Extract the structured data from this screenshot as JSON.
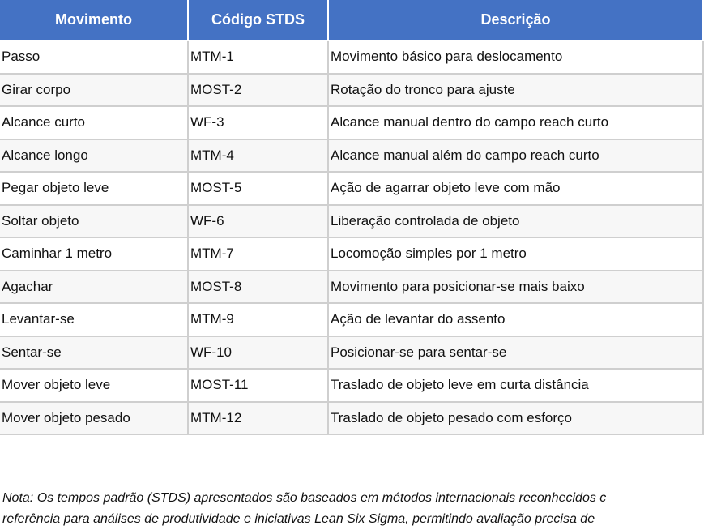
{
  "table": {
    "headers": [
      "Movimento",
      "Código STDS",
      "Descrição"
    ],
    "rows": [
      [
        "Passo",
        "MTM-1",
        "Movimento básico para deslocamento"
      ],
      [
        "Girar corpo",
        "MOST-2",
        "Rotação do tronco para ajuste"
      ],
      [
        "Alcance curto",
        "WF-3",
        "Alcance manual dentro do campo reach curto"
      ],
      [
        "Alcance longo",
        "MTM-4",
        "Alcance manual além do campo reach curto"
      ],
      [
        "Pegar objeto leve",
        "MOST-5",
        "Ação de agarrar objeto leve com mão"
      ],
      [
        "Soltar objeto",
        "WF-6",
        "Liberação controlada de objeto"
      ],
      [
        "Caminhar 1 metro",
        "MTM-7",
        "Locomoção simples por 1 metro"
      ],
      [
        "Agachar",
        "MOST-8",
        "Movimento para posicionar-se mais baixo"
      ],
      [
        "Levantar-se",
        "MTM-9",
        "Ação de levantar do assento"
      ],
      [
        "Sentar-se",
        "WF-10",
        "Posicionar-se para sentar-se"
      ],
      [
        "Mover objeto leve",
        "MOST-11",
        "Traslado de objeto leve em curta distância"
      ],
      [
        "Mover objeto pesado",
        "MTM-12",
        "Traslado de objeto pesado com esforço"
      ]
    ]
  },
  "note": {
    "line1": "Nota: Os tempos padrão (STDS) apresentados são baseados em métodos internacionais reconhecidos c",
    "line2": "referência para análises de produtividade e iniciativas Lean Six Sigma, permitindo avaliação precisa de"
  },
  "colors": {
    "header_bg": "#4472C4",
    "header_text": "#FFFFFF",
    "alt_row": "#F7F7F7",
    "border": "#CFCFCF"
  }
}
